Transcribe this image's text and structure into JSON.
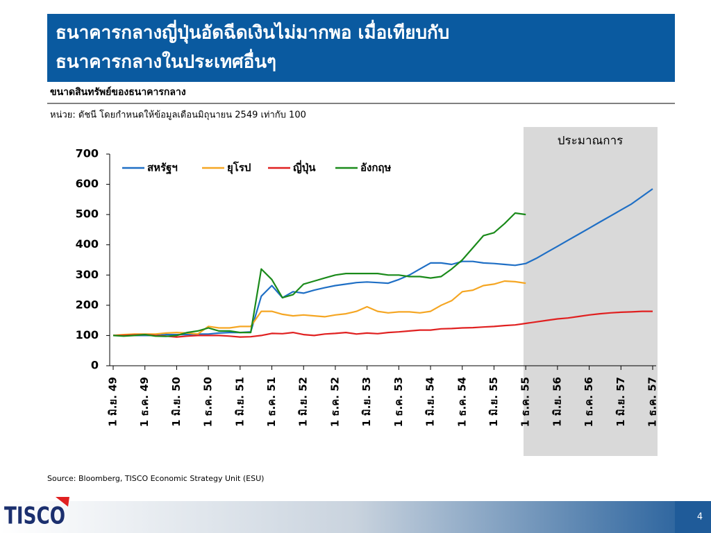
{
  "header": {
    "title_lines": [
      "ธนาคารกลางญี่ปุ่นอัดฉีดเงินไม่มากพอ เมื่อเทียบกับ",
      "ธนาคารกลางในประเทศอื่นๆ"
    ],
    "subtitle": "ขนาดสินทรัพย์ของธนาคารกลาง",
    "unit": "หน่วย: ดัชนี โดยกำหนดให้ข้อมูลเดือนมิถุนายน 2549 เท่ากับ 100"
  },
  "footer": {
    "source": "Source: Bloomberg, TISCO Economic Strategy Unit (ESU)",
    "logo": "TISCO",
    "page": "4"
  },
  "chart_data": {
    "type": "line",
    "annotation": "ประมาณการ",
    "categories": [
      "1 มิ.ย. 49",
      null,
      null,
      "1 ธ.ค. 49",
      null,
      null,
      "1 มิ.ย. 50",
      null,
      null,
      "1 ธ.ค. 50",
      null,
      null,
      "1 มิ.ย. 51",
      null,
      null,
      "1 ธ.ค. 51",
      null,
      null,
      "1 มิ.ย. 52",
      null,
      null,
      "1 ธ.ค. 52",
      null,
      null,
      "1 มิ.ย. 53",
      null,
      null,
      "1 ธ.ค. 53",
      null,
      null,
      "1 มิ.ย. 54",
      null,
      null,
      "1 ธ.ค. 54",
      null,
      null,
      "1 มิ.ย. 55",
      null,
      null,
      "1 ธ.ค. 55",
      null,
      null,
      "1 มิ.ย. 56",
      null,
      null,
      "1 ธ.ค. 56",
      null,
      null,
      "1 มิ.ย. 57",
      null,
      null,
      "1 ธ.ค. 57"
    ],
    "ylim": [
      0,
      700
    ],
    "yticks": [
      0,
      100,
      200,
      300,
      400,
      500,
      600,
      700
    ],
    "legend": "top-left",
    "series": [
      {
        "name": "สหรัฐฯ",
        "color": "#1f6fc5",
        "values": [
          100,
          100,
          100,
          100,
          100,
          103,
          103,
          103,
          105,
          105,
          108,
          110,
          110,
          112,
          230,
          265,
          225,
          245,
          240,
          250,
          258,
          265,
          270,
          275,
          277,
          275,
          273,
          285,
          300,
          320,
          340,
          340,
          335,
          345,
          345,
          340,
          338,
          335,
          332,
          338,
          355,
          375,
          395,
          415,
          435,
          455,
          475,
          495,
          515,
          535,
          560,
          585
        ]
      },
      {
        "name": "ยุโรป",
        "color": "#f5a623",
        "values": [
          100,
          103,
          105,
          105,
          105,
          108,
          110,
          108,
          105,
          130,
          125,
          125,
          130,
          130,
          180,
          180,
          170,
          165,
          168,
          165,
          162,
          168,
          172,
          180,
          195,
          180,
          175,
          178,
          178,
          175,
          180,
          200,
          215,
          245,
          250,
          265,
          270,
          280,
          278,
          273,
          null,
          null,
          null,
          null,
          null,
          null,
          null,
          null,
          null,
          null,
          null,
          null
        ]
      },
      {
        "name": "ญี่ปุ่น",
        "color": "#e02020",
        "values": [
          100,
          100,
          102,
          103,
          100,
          98,
          95,
          98,
          100,
          100,
          100,
          98,
          95,
          96,
          100,
          107,
          106,
          110,
          103,
          100,
          105,
          107,
          110,
          105,
          108,
          106,
          110,
          112,
          115,
          118,
          118,
          122,
          123,
          125,
          126,
          128,
          130,
          133,
          135,
          140,
          145,
          150,
          155,
          158,
          163,
          168,
          172,
          175,
          177,
          178,
          180,
          180
        ]
      },
      {
        "name": "อังกฤษ",
        "color": "#1a8a1a",
        "values": [
          100,
          98,
          100,
          103,
          98,
          97,
          100,
          110,
          115,
          125,
          115,
          115,
          110,
          110,
          320,
          285,
          225,
          235,
          270,
          280,
          290,
          300,
          305,
          305,
          305,
          305,
          300,
          300,
          295,
          295,
          290,
          295,
          320,
          350,
          390,
          430,
          440,
          470,
          505,
          500,
          null,
          null,
          null,
          null,
          null,
          null,
          null,
          null,
          null,
          null,
          null,
          null
        ]
      }
    ]
  }
}
